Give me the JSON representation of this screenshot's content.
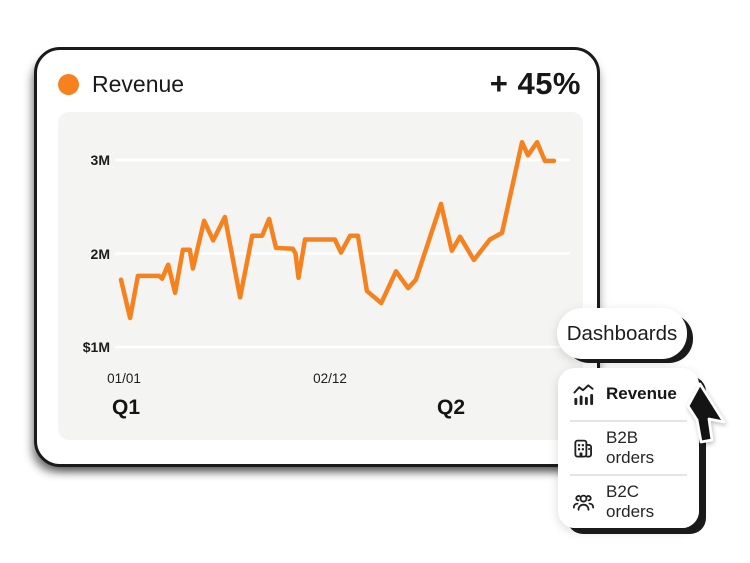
{
  "card": {
    "title": "Revenue",
    "delta": "+ 45%",
    "accent_color": "#F6821F"
  },
  "chart_data": {
    "type": "line",
    "title": "Revenue",
    "series": [
      {
        "name": "Revenue",
        "unit": "USD millions"
      }
    ],
    "series_color": "#F6821F",
    "grid": "horizontal, white lines on light gray panel",
    "legend_position": "none",
    "xlabel": "",
    "ylabel": "",
    "ylim": [
      0.85,
      3.45
    ],
    "y_ticks": [
      {
        "label": "3M",
        "value": 3
      },
      {
        "label": "2M",
        "value": 2
      },
      {
        "label": "$1M",
        "value": 1
      }
    ],
    "x_ticks": [
      {
        "label": "01/01",
        "x_pct": 1.4
      },
      {
        "label": "02/12",
        "x_pct": 49.2
      }
    ],
    "quarter_labels": [
      {
        "label": "Q1",
        "x_pct": 1.6
      },
      {
        "label": "Q2",
        "x_pct": 76.2
      }
    ],
    "points": [
      [
        0,
        1.72
      ],
      [
        2.1,
        1.31
      ],
      [
        3.9,
        1.76
      ],
      [
        8.8,
        1.76
      ],
      [
        9.5,
        1.73
      ],
      [
        10.9,
        1.88
      ],
      [
        12.5,
        1.58
      ],
      [
        14.3,
        2.04
      ],
      [
        15.9,
        2.04
      ],
      [
        16.6,
        1.84
      ],
      [
        19.2,
        2.35
      ],
      [
        21.3,
        2.14
      ],
      [
        24.0,
        2.39
      ],
      [
        27.5,
        1.53
      ],
      [
        30.3,
        2.19
      ],
      [
        32.6,
        2.19
      ],
      [
        34.2,
        2.37
      ],
      [
        35.8,
        2.06
      ],
      [
        39.7,
        2.05
      ],
      [
        40.3,
        2.0
      ],
      [
        41.0,
        1.74
      ],
      [
        42.5,
        2.15
      ],
      [
        49.4,
        2.15
      ],
      [
        50.8,
        2.01
      ],
      [
        52.9,
        2.19
      ],
      [
        54.7,
        2.19
      ],
      [
        56.8,
        1.6
      ],
      [
        60.1,
        1.47
      ],
      [
        63.5,
        1.81
      ],
      [
        66.3,
        1.63
      ],
      [
        68.1,
        1.72
      ],
      [
        73.9,
        2.53
      ],
      [
        76.4,
        2.03
      ],
      [
        78.3,
        2.18
      ],
      [
        81.5,
        1.93
      ],
      [
        85.2,
        2.15
      ],
      [
        88.0,
        2.22
      ],
      [
        92.6,
        3.19
      ],
      [
        94.0,
        3.05
      ],
      [
        96.1,
        3.19
      ],
      [
        97.9,
        2.99
      ],
      [
        100,
        2.99
      ]
    ]
  },
  "popup": {
    "label": "Dashboards"
  },
  "menu": {
    "items": [
      {
        "label": "Revenue",
        "icon": "chart-icon",
        "active": true
      },
      {
        "label": "B2B orders",
        "icon": "building-icon",
        "active": false
      },
      {
        "label": "B2C orders",
        "icon": "people-icon",
        "active": false
      }
    ]
  }
}
